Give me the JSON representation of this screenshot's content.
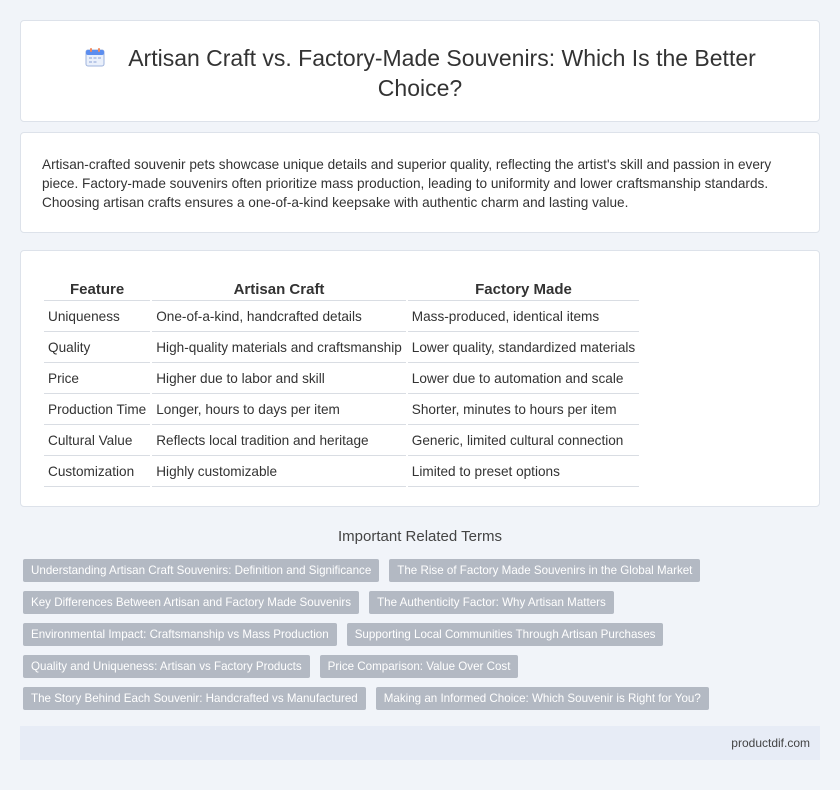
{
  "header": {
    "icon": "calendar-icon",
    "title": "Artisan Craft vs. Factory-Made Souvenirs: Which Is the Better Choice?"
  },
  "intro": {
    "text": "Artisan-crafted souvenir pets showcase unique details and superior quality, reflecting the artist's skill and passion in every piece. Factory-made souvenirs often prioritize mass production, leading to uniformity and lower craftsmanship standards. Choosing artisan crafts ensures a one-of-a-kind keepsake with authentic charm and lasting value."
  },
  "table": {
    "headers": [
      "Feature",
      "Artisan Craft",
      "Factory Made"
    ],
    "rows": [
      [
        "Uniqueness",
        "One-of-a-kind, handcrafted details",
        "Mass-produced, identical items"
      ],
      [
        "Quality",
        "High-quality materials and craftsmanship",
        "Lower quality, standardized materials"
      ],
      [
        "Price",
        "Higher due to labor and skill",
        "Lower due to automation and scale"
      ],
      [
        "Production Time",
        "Longer, hours to days per item",
        "Shorter, minutes to hours per item"
      ],
      [
        "Cultural Value",
        "Reflects local tradition and heritage",
        "Generic, limited cultural connection"
      ],
      [
        "Customization",
        "Highly customizable",
        "Limited to preset options"
      ]
    ]
  },
  "related": {
    "heading": "Important Related Terms",
    "tags": [
      "Understanding Artisan Craft Souvenirs: Definition and Significance",
      "The Rise of Factory Made Souvenirs in the Global Market",
      "Key Differences Between Artisan and Factory Made Souvenirs",
      "The Authenticity Factor: Why Artisan Matters",
      "Environmental Impact: Craftsmanship vs Mass Production",
      "Supporting Local Communities Through Artisan Purchases",
      "Quality and Uniqueness: Artisan vs Factory Products",
      "Price Comparison: Value Over Cost",
      "The Story Behind Each Souvenir: Handcrafted vs Manufactured",
      "Making an Informed Choice: Which Souvenir is Right for You?"
    ]
  },
  "footer": {
    "site": "productdif.com"
  }
}
